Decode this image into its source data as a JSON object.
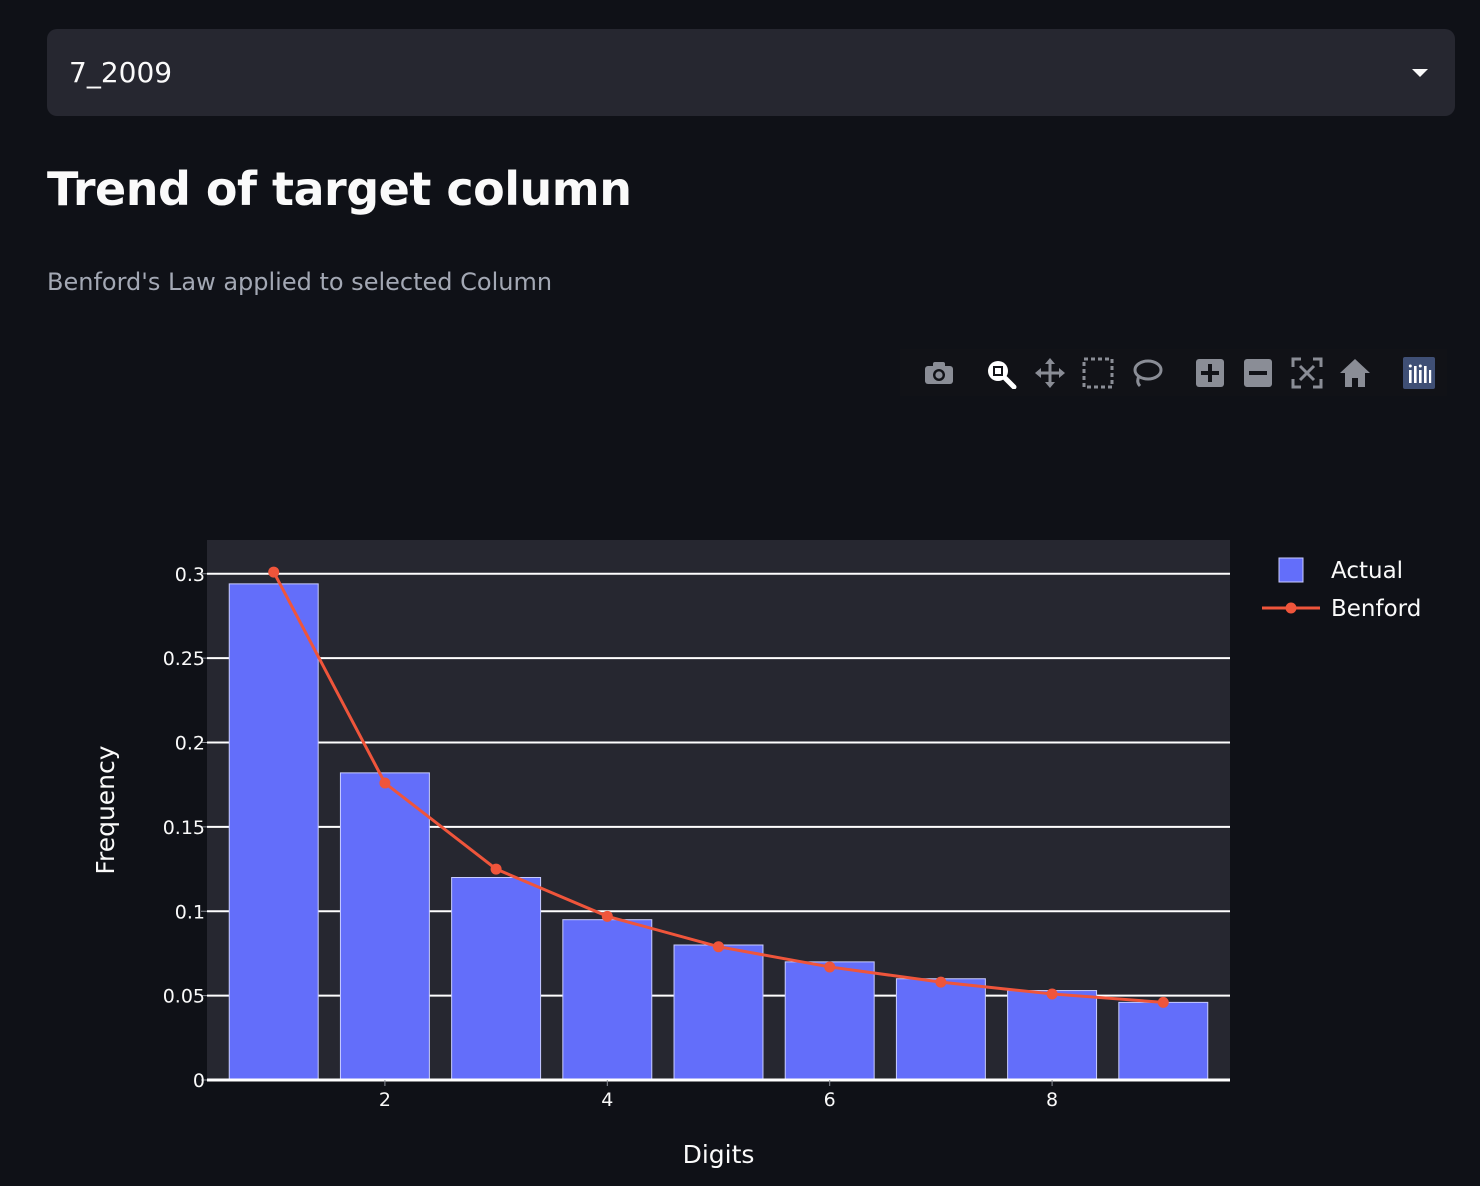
{
  "select": {
    "value": "7_2009"
  },
  "title": "Trend of target column",
  "subtitle": "Benford's Law applied to selected Column",
  "modebar": [
    {
      "icon": "camera-icon",
      "name": "download-plot-button"
    },
    {
      "icon": "zoom-icon",
      "name": "zoom-button"
    },
    {
      "icon": "pan-icon",
      "name": "pan-button"
    },
    {
      "icon": "box-select-icon",
      "name": "box-select-button"
    },
    {
      "icon": "lasso-select-icon",
      "name": "lasso-select-button"
    },
    {
      "icon": "zoom-in-icon",
      "name": "zoom-in-button"
    },
    {
      "icon": "zoom-out-icon",
      "name": "zoom-out-button"
    },
    {
      "icon": "autoscale-icon",
      "name": "autoscale-button"
    },
    {
      "icon": "reset-axes-icon",
      "name": "reset-axes-button"
    },
    {
      "icon": "plotly-logo-icon",
      "name": "plotly-logo"
    }
  ],
  "colors": {
    "bar": "#636efa",
    "line": "#ef553b",
    "plot_bg": "#262730",
    "grid": "#ffffff",
    "text": "#fafafa"
  },
  "chart_data": {
    "type": "bar",
    "xlabel": "Digits",
    "ylabel": "Frequency",
    "xlim": [
      0.4,
      9.6
    ],
    "ylim": [
      0,
      0.32
    ],
    "xticks": [
      2,
      4,
      6,
      8
    ],
    "xtick_labels": [
      "2",
      "4",
      "6",
      "8"
    ],
    "yticks": [
      0,
      0.05,
      0.1,
      0.15,
      0.2,
      0.25,
      0.3
    ],
    "ytick_labels": [
      "0",
      "0.05",
      "0.1",
      "0.15",
      "0.2",
      "0.25",
      "0.3"
    ],
    "grid": true,
    "legend_position": "top-right",
    "x": [
      1,
      2,
      3,
      4,
      5,
      6,
      7,
      8,
      9
    ],
    "series": [
      {
        "name": "Actual",
        "kind": "bar",
        "values": [
          0.294,
          0.182,
          0.12,
          0.095,
          0.08,
          0.07,
          0.06,
          0.053,
          0.046
        ]
      },
      {
        "name": "Benford",
        "kind": "line",
        "values": [
          0.301,
          0.176,
          0.125,
          0.097,
          0.079,
          0.067,
          0.058,
          0.051,
          0.046
        ]
      }
    ]
  }
}
